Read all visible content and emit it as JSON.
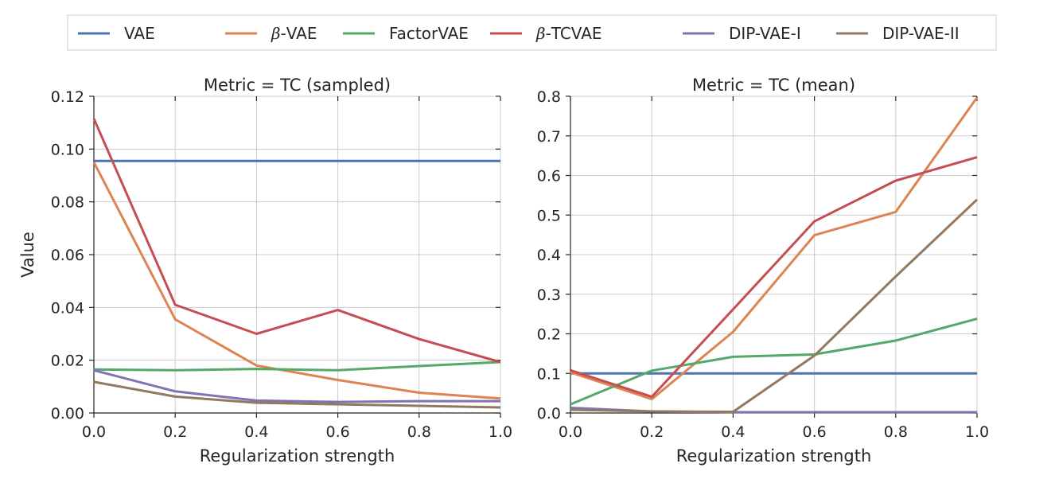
{
  "legend": {
    "placement": "top, above both panels",
    "entries": [
      {
        "name": "VAE",
        "prefix": "",
        "suffix": "VAE",
        "color": "#4c72b0"
      },
      {
        "name": "β-VAE",
        "prefix": "β",
        "suffix": "-VAE",
        "color": "#dd8452"
      },
      {
        "name": "FactorVAE",
        "prefix": "",
        "suffix": "FactorVAE",
        "color": "#55a868"
      },
      {
        "name": "β-TCVAE",
        "prefix": "β",
        "suffix": "-TCVAE",
        "color": "#c44e52"
      },
      {
        "name": "DIP-VAE-I",
        "prefix": "",
        "suffix": "DIP-VAE-I",
        "color": "#8172b3"
      },
      {
        "name": "DIP-VAE-II",
        "prefix": "",
        "suffix": "DIP-VAE-II",
        "color": "#937860"
      }
    ]
  },
  "chart_data": [
    {
      "type": "line",
      "title": "Metric = TC (sampled)",
      "xlabel": "Regularization strength",
      "ylabel": "Value",
      "x": [
        0.0,
        0.2,
        0.4,
        0.6,
        0.8,
        1.0
      ],
      "xlim": [
        0.0,
        1.0
      ],
      "ylim": [
        0.0,
        0.12
      ],
      "xticks": [
        0.0,
        0.2,
        0.4,
        0.6,
        0.8,
        1.0
      ],
      "xtick_labels": [
        "0.0",
        "0.2",
        "0.4",
        "0.6",
        "0.8",
        "1.0"
      ],
      "yticks": [
        0.0,
        0.02,
        0.04,
        0.06,
        0.08,
        0.1,
        0.12
      ],
      "ytick_labels": [
        "0.00",
        "0.02",
        "0.04",
        "0.06",
        "0.08",
        "0.10",
        "0.12"
      ],
      "grid": true,
      "series": [
        {
          "name": "VAE",
          "color": "#4c72b0",
          "values": [
            0.0955,
            0.0955,
            0.0955,
            0.0955,
            0.0955,
            0.0955
          ]
        },
        {
          "name": "β-VAE",
          "color": "#dd8452",
          "values": [
            0.095,
            0.0355,
            0.018,
            0.0125,
            0.0077,
            0.0055
          ]
        },
        {
          "name": "FactorVAE",
          "color": "#55a868",
          "values": [
            0.0165,
            0.0162,
            0.0167,
            0.0162,
            0.0178,
            0.0193
          ]
        },
        {
          "name": "β-TCVAE",
          "color": "#c44e52",
          "values": [
            0.1115,
            0.041,
            0.03,
            0.039,
            0.028,
            0.0193
          ]
        },
        {
          "name": "DIP-VAE-I",
          "color": "#8172b3",
          "values": [
            0.0162,
            0.0082,
            0.0047,
            0.0042,
            0.0045,
            0.0045
          ]
        },
        {
          "name": "DIP-VAE-II",
          "color": "#937860",
          "values": [
            0.0118,
            0.0062,
            0.0039,
            0.0033,
            0.0027,
            0.0021
          ]
        }
      ]
    },
    {
      "type": "line",
      "title": "Metric = TC (mean)",
      "xlabel": "Regularization strength",
      "ylabel": "",
      "x": [
        0.0,
        0.2,
        0.4,
        0.6,
        0.8,
        1.0
      ],
      "xlim": [
        0.0,
        1.0
      ],
      "ylim": [
        0.0,
        0.8
      ],
      "xticks": [
        0.0,
        0.2,
        0.4,
        0.6,
        0.8,
        1.0
      ],
      "xtick_labels": [
        "0.0",
        "0.2",
        "0.4",
        "0.6",
        "0.8",
        "1.0"
      ],
      "yticks": [
        0.0,
        0.1,
        0.2,
        0.3,
        0.4,
        0.5,
        0.6,
        0.7,
        0.8
      ],
      "ytick_labels": [
        "0.0",
        "0.1",
        "0.2",
        "0.3",
        "0.4",
        "0.5",
        "0.6",
        "0.7",
        "0.8"
      ],
      "grid": true,
      "series": [
        {
          "name": "VAE",
          "color": "#4c72b0",
          "values": [
            0.1,
            0.1,
            0.1,
            0.1,
            0.1,
            0.1
          ]
        },
        {
          "name": "β-VAE",
          "color": "#dd8452",
          "values": [
            0.103,
            0.035,
            0.205,
            0.449,
            0.508,
            0.797
          ]
        },
        {
          "name": "FactorVAE",
          "color": "#55a868",
          "values": [
            0.022,
            0.107,
            0.142,
            0.148,
            0.183,
            0.238
          ]
        },
        {
          "name": "β-TCVAE",
          "color": "#c44e52",
          "values": [
            0.108,
            0.041,
            0.262,
            0.484,
            0.587,
            0.646
          ]
        },
        {
          "name": "DIP-VAE-I",
          "color": "#8172b3",
          "values": [
            0.013,
            0.004,
            0.002,
            0.002,
            0.002,
            0.002
          ]
        },
        {
          "name": "DIP-VAE-II",
          "color": "#937860",
          "values": [
            0.008,
            0.004,
            0.003,
            0.145,
            0.345,
            0.539
          ]
        }
      ]
    }
  ]
}
